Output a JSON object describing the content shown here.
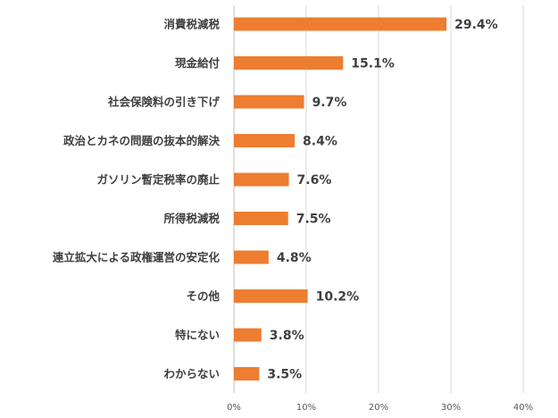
{
  "chart_data": {
    "type": "bar",
    "orientation": "horizontal",
    "categories": [
      "消費税減税",
      "現金給付",
      "社会保険料の引き下げ",
      "政治とカネの問題の抜本的解決",
      "ガソリン暫定税率の廃止",
      "所得税減税",
      "連立拡大による政権運営の安定化",
      "その他",
      "特にない",
      "わからない"
    ],
    "values": [
      29.4,
      15.1,
      9.7,
      8.4,
      7.6,
      7.5,
      4.8,
      10.2,
      3.8,
      3.5
    ],
    "value_labels": [
      "29.4%",
      "15.1%",
      "9.7%",
      "8.4%",
      "7.6%",
      "7.5%",
      "4.8%",
      "10.2%",
      "3.8%",
      "3.5%"
    ],
    "xlim": [
      0,
      40
    ],
    "xticks": [
      0,
      10,
      20,
      30,
      40
    ],
    "xtick_labels": [
      "0%",
      "10%",
      "20%",
      "30%",
      "40%"
    ],
    "grid": true,
    "legend": "none",
    "bar_color": "#ED7D31"
  }
}
